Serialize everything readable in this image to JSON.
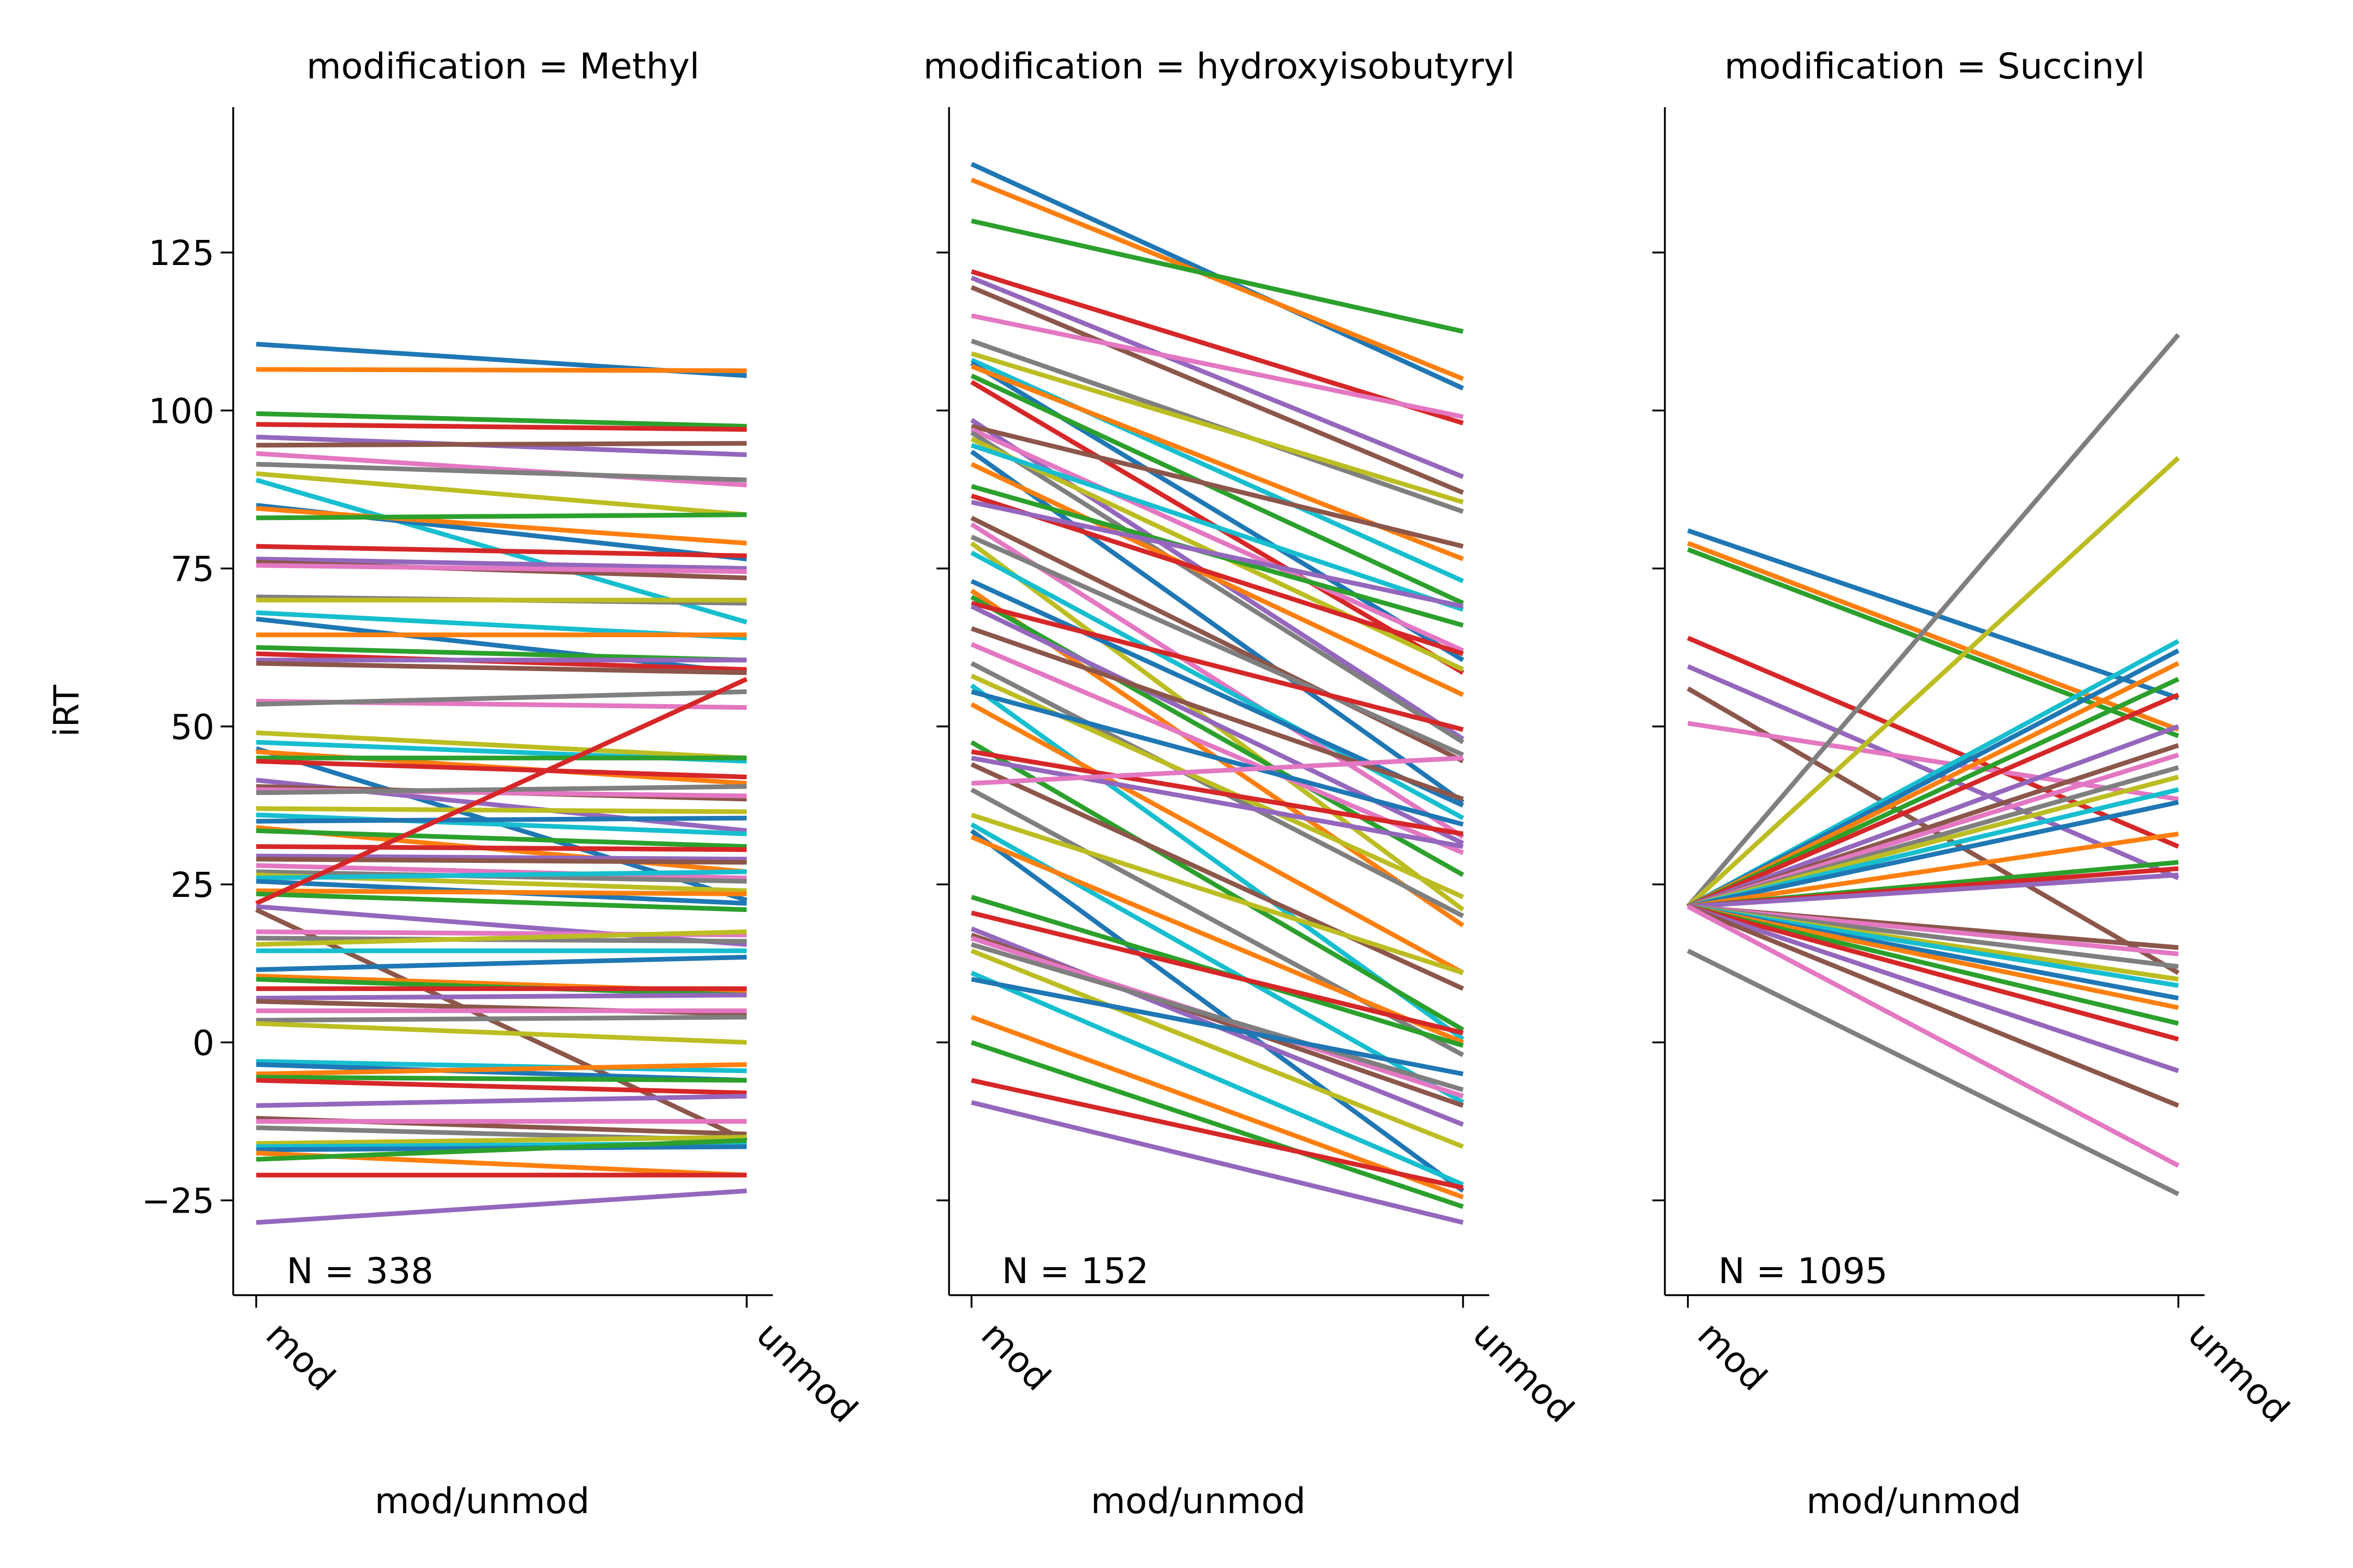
{
  "chart_data": {
    "type": "line",
    "ylabel": "iRT",
    "yticks": [
      -25,
      0,
      25,
      50,
      75,
      100,
      125
    ],
    "ylim": [
      -40,
      148
    ],
    "grid": false,
    "legend": "none",
    "palette": [
      "#1f77b4",
      "#ff7f0e",
      "#2ca02c",
      "#d62728",
      "#9467bd",
      "#8c564b",
      "#e377c2",
      "#7f7f7f",
      "#bcbd22",
      "#17becf"
    ],
    "panels": [
      {
        "title": "modification = Methyl",
        "xlabel": "mod/unmod",
        "categories": [
          "mod",
          "unmod"
        ],
        "annotation": "N = 338",
        "pairs": [
          [
            110.5,
            105.5
          ],
          [
            106.5,
            106.3
          ],
          [
            99.5,
            97.5
          ],
          [
            97.8,
            97.0
          ],
          [
            95.8,
            93.0
          ],
          [
            94.5,
            94.8
          ],
          [
            93.2,
            88.2
          ],
          [
            91.5,
            89.0
          ],
          [
            90.0,
            83.5
          ],
          [
            89.0,
            66.5
          ],
          [
            85.0,
            76.5
          ],
          [
            84.5,
            79.0
          ],
          [
            83.0,
            83.5
          ],
          [
            78.5,
            77.0
          ],
          [
            76.5,
            75.0
          ],
          [
            76.0,
            73.5
          ],
          [
            75.5,
            74.5
          ],
          [
            70.5,
            69.5
          ],
          [
            70.0,
            70.0
          ],
          [
            68.0,
            64.0
          ],
          [
            67.0,
            58.5
          ],
          [
            64.5,
            64.5
          ],
          [
            62.5,
            60.5
          ],
          [
            61.5,
            59.0
          ],
          [
            60.5,
            60.5
          ],
          [
            60.0,
            58.5
          ],
          [
            54.0,
            53.0
          ],
          [
            53.5,
            55.5
          ],
          [
            49.0,
            45.0
          ],
          [
            47.5,
            44.5
          ],
          [
            46.5,
            22.5
          ],
          [
            46.0,
            41.0
          ],
          [
            45.0,
            45.0
          ],
          [
            44.5,
            42.0
          ],
          [
            41.5,
            33.5
          ],
          [
            40.5,
            38.5
          ],
          [
            40.0,
            39.0
          ],
          [
            39.5,
            40.5
          ],
          [
            37.0,
            36.5
          ],
          [
            36.0,
            33.0
          ],
          [
            35.0,
            35.5
          ],
          [
            34.0,
            27.0
          ],
          [
            33.5,
            31.0
          ],
          [
            31.0,
            30.5
          ],
          [
            29.5,
            29.0
          ],
          [
            29.0,
            28.5
          ],
          [
            28.0,
            26.0
          ],
          [
            27.0,
            25.5
          ],
          [
            26.5,
            24.0
          ],
          [
            26.0,
            27.0
          ],
          [
            25.5,
            22.0
          ],
          [
            24.0,
            23.5
          ],
          [
            23.5,
            21.0
          ],
          [
            22.0,
            57.5
          ],
          [
            21.5,
            15.5
          ],
          [
            21.0,
            -15.5
          ],
          [
            17.5,
            17.0
          ],
          [
            16.5,
            16.0
          ],
          [
            15.5,
            17.5
          ],
          [
            14.5,
            14.5
          ],
          [
            11.5,
            13.5
          ],
          [
            10.5,
            8.0
          ],
          [
            10.0,
            7.5
          ],
          [
            8.5,
            8.5
          ],
          [
            7.0,
            7.5
          ],
          [
            6.5,
            4.5
          ],
          [
            5.0,
            5.0
          ],
          [
            3.5,
            4.0
          ],
          [
            3.0,
            0.0
          ],
          [
            -3.0,
            -4.5
          ],
          [
            -3.5,
            -6.0
          ],
          [
            -5.0,
            -3.5
          ],
          [
            -5.5,
            -6.0
          ],
          [
            -6.0,
            -8.0
          ],
          [
            -10.0,
            -8.5
          ],
          [
            -12.0,
            -14.5
          ],
          [
            -12.5,
            -12.5
          ],
          [
            -13.5,
            -15.5
          ],
          [
            -16.0,
            -15.0
          ],
          [
            -16.5,
            -16.0
          ],
          [
            -17.0,
            -16.5
          ],
          [
            -17.5,
            -21.0
          ],
          [
            -18.5,
            -15.5
          ],
          [
            -21.0,
            -21.0
          ],
          [
            -28.5,
            -23.5
          ]
        ]
      },
      {
        "title": "modification = hydroxyisobutyryl",
        "xlabel": "mod/unmod",
        "categories": [
          "mod",
          "unmod"
        ],
        "annotation": "N = 152",
        "pairs": [
          [
            139.0,
            103.5
          ],
          [
            136.5,
            105.0
          ],
          [
            130.0,
            112.5
          ],
          [
            122.0,
            98.0
          ],
          [
            121.0,
            89.5
          ],
          [
            119.5,
            87.0
          ],
          [
            115.0,
            99.0
          ],
          [
            111.0,
            84.0
          ],
          [
            109.0,
            85.5
          ],
          [
            108.0,
            73.0
          ],
          [
            107.5,
            60.5
          ],
          [
            107.0,
            76.5
          ],
          [
            105.5,
            69.5
          ],
          [
            104.5,
            58.5
          ],
          [
            98.5,
            48.0
          ],
          [
            97.5,
            78.5
          ],
          [
            97.0,
            62.0
          ],
          [
            96.5,
            47.5
          ],
          [
            95.5,
            59.0
          ],
          [
            94.5,
            68.5
          ],
          [
            93.5,
            38.0
          ],
          [
            91.5,
            55.0
          ],
          [
            88.0,
            66.0
          ],
          [
            86.5,
            61.5
          ],
          [
            85.5,
            69.0
          ],
          [
            83.0,
            44.5
          ],
          [
            82.0,
            32.5
          ],
          [
            80.0,
            45.5
          ],
          [
            79.0,
            21.0
          ],
          [
            77.5,
            35.5
          ],
          [
            73.0,
            37.5
          ],
          [
            71.5,
            18.5
          ],
          [
            70.5,
            26.5
          ],
          [
            69.5,
            49.5
          ],
          [
            69.0,
            31.5
          ],
          [
            65.5,
            38.5
          ],
          [
            63.0,
            30.0
          ],
          [
            60.0,
            20.0
          ],
          [
            58.0,
            23.0
          ],
          [
            56.5,
            0.5
          ],
          [
            55.5,
            34.5
          ],
          [
            53.5,
            11.0
          ],
          [
            47.5,
            2.0
          ],
          [
            46.0,
            33.0
          ],
          [
            45.0,
            31.0
          ],
          [
            44.0,
            8.5
          ],
          [
            41.0,
            45.0
          ],
          [
            40.0,
            -2.0
          ],
          [
            36.0,
            11.0
          ],
          [
            34.5,
            -9.5
          ],
          [
            33.5,
            -23.5
          ],
          [
            32.5,
            0.0
          ],
          [
            23.0,
            -0.5
          ],
          [
            20.5,
            1.5
          ],
          [
            18.0,
            -13.0
          ],
          [
            17.0,
            -10.0
          ],
          [
            16.5,
            -8.5
          ],
          [
            15.5,
            -7.5
          ],
          [
            14.5,
            -16.5
          ],
          [
            11.0,
            -22.5
          ],
          [
            10.0,
            -5.0
          ],
          [
            4.0,
            -24.5
          ],
          [
            0.0,
            -26.0
          ],
          [
            -6.0,
            -23.0
          ],
          [
            -9.5,
            -28.5
          ]
        ]
      },
      {
        "title": "modification = Succinyl",
        "xlabel": "mod/unmod",
        "categories": [
          "mod",
          "unmod"
        ],
        "annotation": "N = 1095",
        "pairs": [
          [
            81.0,
            54.5
          ],
          [
            79.0,
            49.5
          ],
          [
            78.0,
            48.5
          ],
          [
            64.0,
            31.0
          ],
          [
            59.5,
            26.0
          ],
          [
            56.0,
            11.0
          ],
          [
            50.5,
            38.5
          ],
          [
            21.5,
            112.0
          ],
          [
            21.5,
            92.5
          ],
          [
            21.5,
            63.5
          ],
          [
            21.5,
            62.0
          ],
          [
            21.5,
            60.0
          ],
          [
            21.5,
            57.5
          ],
          [
            21.5,
            55.0
          ],
          [
            21.5,
            50.0
          ],
          [
            21.5,
            47.0
          ],
          [
            21.5,
            45.5
          ],
          [
            21.5,
            43.5
          ],
          [
            21.5,
            42.0
          ],
          [
            21.5,
            40.0
          ],
          [
            21.5,
            38.0
          ],
          [
            21.5,
            33.0
          ],
          [
            21.5,
            28.5
          ],
          [
            21.5,
            27.5
          ],
          [
            21.5,
            26.5
          ],
          [
            21.5,
            15.0
          ],
          [
            21.5,
            14.0
          ],
          [
            21.5,
            12.0
          ],
          [
            21.5,
            10.0
          ],
          [
            21.5,
            9.0
          ],
          [
            21.5,
            7.0
          ],
          [
            21.5,
            5.5
          ],
          [
            21.5,
            3.0
          ],
          [
            21.5,
            0.5
          ],
          [
            21.5,
            -4.5
          ],
          [
            21.5,
            -10.0
          ],
          [
            21.5,
            -19.5
          ],
          [
            14.5,
            -24.0
          ]
        ]
      }
    ]
  }
}
